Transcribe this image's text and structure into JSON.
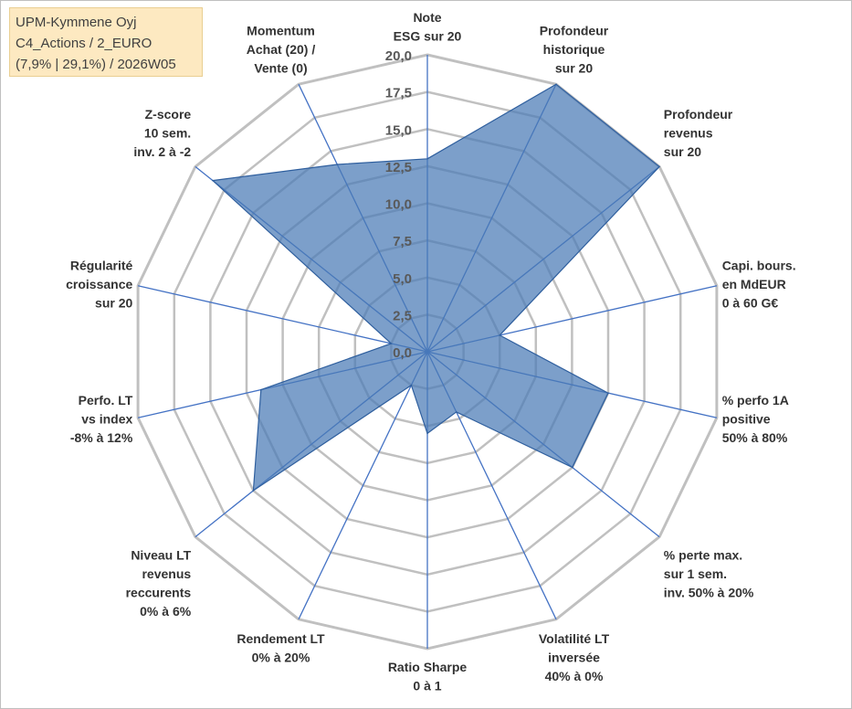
{
  "info": {
    "line1": "UPM-Kymmene Oyj",
    "line2": "C4_Actions / 2_EURO",
    "line3": "(7,9% | 29,1%) / 2026W05"
  },
  "colors": {
    "fill": "#4a7ab5",
    "stroke": "#2f5f9e",
    "gridline": "#c0c0c0",
    "spoke": "#4472c4"
  },
  "chart_data": {
    "type": "radar",
    "rmax": 20,
    "ticks": [
      "0,0",
      "2,5",
      "5,0",
      "7,5",
      "10,0",
      "12,5",
      "15,0",
      "17,5",
      "20,0"
    ],
    "grid_rings": [
      0,
      2.5,
      5,
      7.5,
      10,
      12.5,
      15,
      17.5,
      20
    ],
    "categories": [
      [
        "Note",
        "ESG sur 20"
      ],
      [
        "Profondeur",
        "historique",
        "sur 20"
      ],
      [
        "Profondeur",
        "revenus",
        "sur 20"
      ],
      [
        "Capi. bours.",
        "en MdEUR",
        "0 à 60 G€"
      ],
      [
        "% perfo 1A",
        "positive",
        "50% à 80%"
      ],
      [
        "% perte max.",
        "sur 1 sem.",
        "inv. 50% à 20%"
      ],
      [
        "Volatilité LT",
        "inversée",
        "40% à 0%"
      ],
      [
        "Ratio Sharpe",
        "0 à 1"
      ],
      [
        "Rendement LT",
        "0% à 20%"
      ],
      [
        "Niveau LT",
        "revenus",
        "reccurents",
        "0% à 6%"
      ],
      [
        "Perfo. LT",
        "vs index",
        "-8% à 12%"
      ],
      [
        "Régularité",
        "croissance",
        "sur 20"
      ],
      [
        "Z-score",
        "10 sem.",
        "inv. 2 à -2"
      ],
      [
        "Momentum",
        "Achat (20) /",
        "Vente (0)"
      ]
    ],
    "series": [
      {
        "values": [
          13,
          20,
          20,
          5,
          12.5,
          12.5,
          4.5,
          5.5,
          2.5,
          15,
          11.5,
          2.5,
          18.5,
          14
        ]
      }
    ]
  }
}
